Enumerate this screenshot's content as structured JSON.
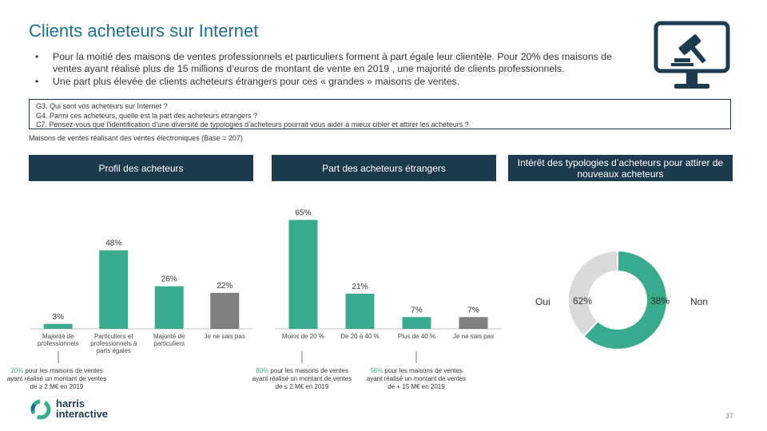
{
  "title": "Clients acheteurs sur Internet",
  "bullets": [
    "Pour la moitié des maisons de ventes professionnels et particuliers forment à part égale leur clientèle. Pour 20% des maisons de ventes ayant réalisé plus de 15 millions d’euros de montant de vente en 2019 , une majorité de clients professionnels.",
    "Une part plus élevée de clients acheteurs étrangers pour ces « grandes » maisons de ventes."
  ],
  "bullet_symbol": "•",
  "questions": [
    "G3. Qui sont vos acheteurs sur Internet ?",
    "G4. Parmi ces acheteurs, quelle est la part des acheteurs étrangers ?",
    "C7. Pensez-vous que l’identification d’une diversité de typologies d’acheteurs pourrait vous aider à mieux cibler et attirer les acheteurs ?"
  ],
  "base": "Maisons de ventes réalisant des ventes électroniques (Base = 207)",
  "headers": {
    "profil": "Profil des acheteurs",
    "etrangers": "Part des acheteurs étrangers",
    "interet": "Intérêt des typologies d’acheteurs pour attirer de nouveaux acheteurs"
  },
  "colors": {
    "teal": "#3aaa8c",
    "grey": "#7f7f7f",
    "light_grey": "#d9d9d9",
    "navy": "#1d3a4f",
    "title_blue": "#1f6f8b"
  },
  "chart_data": [
    {
      "type": "bar",
      "title": "Profil des acheteurs",
      "categories": [
        "Majorité de professionnels",
        "Particuliers et professionnels à parts égales",
        "Majorité de particuliers",
        "Je ne sais pas"
      ],
      "values": [
        3,
        48,
        26,
        22
      ],
      "value_labels": [
        "3%",
        "48%",
        "26%",
        "22%"
      ],
      "colors": [
        "#3aaa8c",
        "#3aaa8c",
        "#3aaa8c",
        "#7f7f7f"
      ],
      "ylim": [
        0,
        100
      ]
    },
    {
      "type": "bar",
      "title": "Part des acheteurs étrangers",
      "categories": [
        "Moins de 20 %",
        "De 20 à 40 %",
        "Plus de 40 %",
        "Je ne sais pas"
      ],
      "values": [
        65,
        21,
        7,
        7
      ],
      "value_labels": [
        "65%",
        "21%",
        "7%",
        "7%"
      ],
      "colors": [
        "#3aaa8c",
        "#3aaa8c",
        "#3aaa8c",
        "#7f7f7f"
      ],
      "ylim": [
        0,
        100
      ]
    },
    {
      "type": "pie",
      "title": "Intérêt des typologies d’acheteurs pour attirer de nouveaux acheteurs",
      "categories": [
        "Oui",
        "Non"
      ],
      "values": [
        62,
        38
      ],
      "value_labels": [
        "62%",
        "38%"
      ],
      "colors": [
        "#3aaa8c",
        "#d9d9d9"
      ]
    }
  ],
  "notes": [
    {
      "highlight": "20%",
      "text": " pour les maisons de ventes ayant réalisé un montant de ventes de ≥ 2 M€ en 2019"
    },
    {
      "highlight": "80%",
      "text": " pour les maisons de ventes ayant réalisé un montant de ventes de ≤ 2 M€ en 2019"
    },
    {
      "highlight": "56%",
      "text": " pour les maisons de ventes ayant réalisé un montant de ventes de + 15 M€ en 2019"
    }
  ],
  "logo": {
    "line1": "harris",
    "line2": "interactive"
  },
  "page_number": "37",
  "icon": "computer-auction-gavel-icon"
}
